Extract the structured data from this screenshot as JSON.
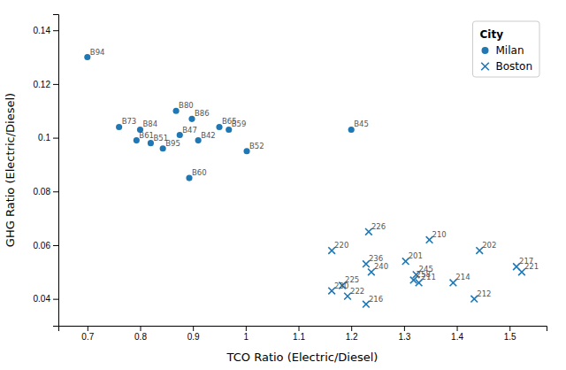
{
  "chart_data": {
    "type": "scatter",
    "xlabel": "TCO Ratio (Electric/Diesel)",
    "ylabel": "GHG Ratio (Electric/Diesel)",
    "xlim": [
      0.645,
      1.57
    ],
    "ylim": [
      0.03,
      0.146
    ],
    "xticks": [
      0.7,
      0.8,
      0.9,
      1,
      1.1,
      1.2,
      1.3,
      1.4,
      1.5
    ],
    "yticks": [
      0.04,
      0.06,
      0.08,
      0.1,
      0.12,
      0.14
    ],
    "grid": false,
    "legend": "upper right",
    "legend_title": "City",
    "series": [
      {
        "name": "Milan",
        "marker": "circle",
        "color": "#1f77b4",
        "x": [
          0.7,
          0.76,
          0.8,
          0.793,
          0.82,
          0.843,
          0.868,
          0.898,
          0.875,
          0.91,
          0.95,
          0.968,
          0.893,
          1.002,
          1.2
        ],
        "values": [
          0.13,
          0.104,
          0.103,
          0.099,
          0.098,
          0.096,
          0.11,
          0.107,
          0.101,
          0.099,
          0.104,
          0.103,
          0.085,
          0.095,
          0.103
        ],
        "labels": [
          "B94",
          "B73",
          "B84",
          "B61",
          "B51",
          "B95",
          "B80",
          "B86",
          "B47",
          "B42",
          "B65",
          "B59",
          "B60",
          "B52",
          "B45"
        ]
      },
      {
        "name": "Boston",
        "marker": "x",
        "color": "#1f77b4",
        "x": [
          1.233,
          1.163,
          1.228,
          1.238,
          1.303,
          1.323,
          1.348,
          1.318,
          1.328,
          1.163,
          1.183,
          1.193,
          1.228,
          1.393,
          1.433,
          1.443,
          1.513,
          1.523
        ],
        "values": [
          0.065,
          0.058,
          0.053,
          0.05,
          0.054,
          0.049,
          0.062,
          0.047,
          0.046,
          0.043,
          0.045,
          0.041,
          0.038,
          0.046,
          0.04,
          0.058,
          0.052,
          0.05
        ],
        "labels": [
          "226",
          "220",
          "236",
          "240",
          "201",
          "245",
          "210",
          "258",
          "211",
          "230",
          "225",
          "222",
          "216",
          "214",
          "212",
          "202",
          "217",
          "221"
        ]
      }
    ]
  }
}
